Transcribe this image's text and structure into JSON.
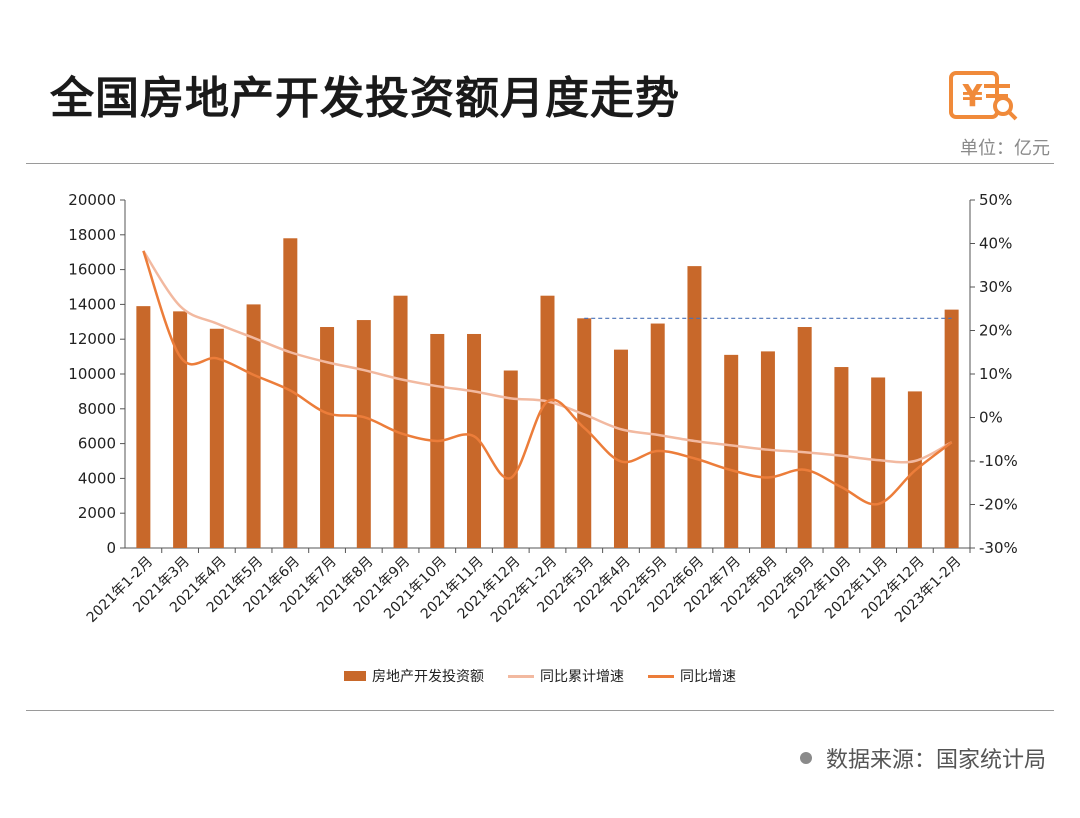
{
  "header": {
    "title": "全国房地产开发投资额月度走势",
    "unit": "单位：亿元",
    "logo_icon": "yuan-receipt-search-icon"
  },
  "footer": {
    "source": "数据来源：国家统计局"
  },
  "colors": {
    "bar": "#c8682a",
    "cumulative_line": "#f2b9a0",
    "yoy_line": "#ec7d3a",
    "reference_line": "#4a72b8",
    "icon": "#f08a3a"
  },
  "chart_data": {
    "type": "bar",
    "categories": [
      "2021年1-2月",
      "2021年3月",
      "2021年4月",
      "2021年5月",
      "2021年6月",
      "2021年7月",
      "2021年8月",
      "2021年9月",
      "2021年10月",
      "2021年11月",
      "2021年12月",
      "2022年1-2月",
      "2022年3月",
      "2022年4月",
      "2022年5月",
      "2022年6月",
      "2022年7月",
      "2022年8月",
      "2022年9月",
      "2022年10月",
      "2022年11月",
      "2022年12月",
      "2023年1-2月"
    ],
    "series": [
      {
        "name": "房地产开发投资额",
        "type": "bar",
        "axis": "left",
        "values": [
          13900,
          13600,
          12600,
          14000,
          17800,
          12700,
          13100,
          14500,
          12300,
          12300,
          10200,
          14500,
          13200,
          11400,
          12900,
          16200,
          11100,
          11300,
          12700,
          10400,
          9800,
          9000,
          13700
        ]
      },
      {
        "name": "同比累计增速",
        "type": "line",
        "axis": "right",
        "values": [
          38.3,
          25.6,
          21.6,
          18.3,
          15.0,
          12.7,
          10.9,
          8.8,
          7.2,
          6.0,
          4.4,
          3.7,
          0.7,
          -2.7,
          -4.0,
          -5.4,
          -6.4,
          -7.4,
          -8.0,
          -8.8,
          -9.8,
          -10.0,
          -5.7
        ]
      },
      {
        "name": "同比增速",
        "type": "line",
        "axis": "right",
        "values": [
          38.3,
          14.0,
          13.6,
          9.8,
          6.2,
          1.0,
          0.1,
          -3.6,
          -5.4,
          -4.3,
          -13.9,
          3.7,
          -2.4,
          -10.1,
          -7.7,
          -9.4,
          -12.1,
          -13.8,
          -12.0,
          -16.0,
          -19.9,
          -12.2,
          -5.7
        ]
      }
    ],
    "y_left": {
      "ylim": [
        0,
        20000
      ],
      "ticks": [
        "0",
        "2000",
        "4000",
        "6000",
        "8000",
        "10000",
        "12000",
        "14000",
        "16000",
        "18000",
        "20000"
      ]
    },
    "y_right": {
      "ylim": [
        -30,
        50
      ],
      "ticks": [
        "-30%",
        "-20%",
        "-10%",
        "0%",
        "10%",
        "20%",
        "30%",
        "40%",
        "50%"
      ]
    },
    "reference_line": {
      "style": "dashed",
      "axis": "left",
      "from_category": "2022年3月",
      "to_category": "2023年1-2月",
      "value": 13200
    },
    "legend_position": "bottom",
    "grid": false
  }
}
